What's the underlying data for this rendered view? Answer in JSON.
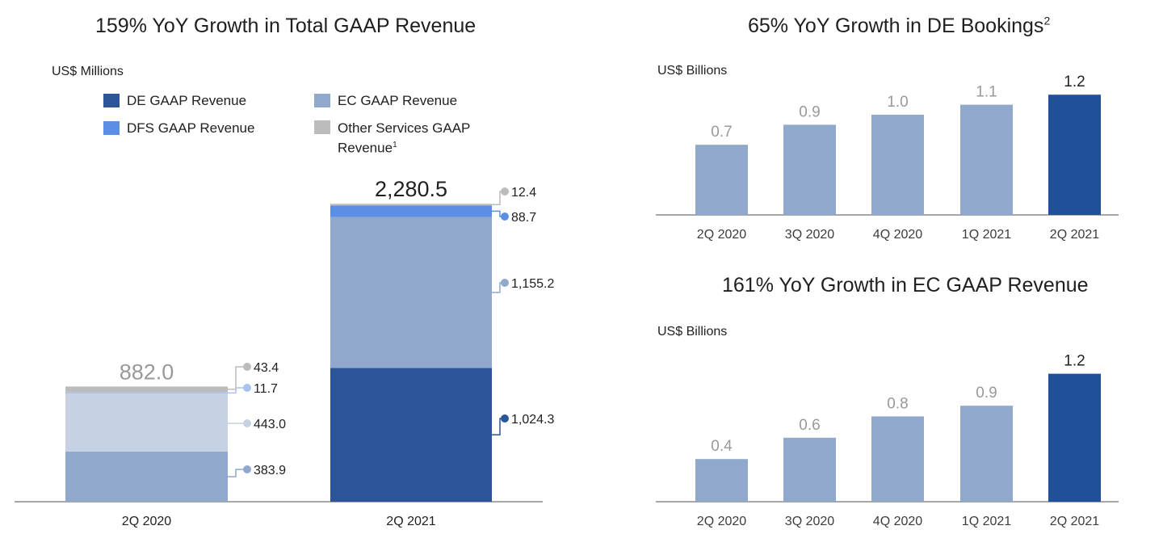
{
  "colors": {
    "de": "#2b5499",
    "ec": "#8fa8cc",
    "ec_light": "#c6d1e3",
    "dfs": "#5b8fe6",
    "dfs_light": "#a9c3f0",
    "other": "#bcbcbc",
    "highlight": "#21509a",
    "axis": "#8a8a8a",
    "muted_label": "#999999",
    "dark_label": "#202124"
  },
  "chart_data": [
    {
      "type": "bar",
      "stacked": true,
      "title": "159% YoY Growth in Total GAAP Revenue",
      "unit_label": "US$ Millions",
      "categories": [
        "2Q 2020",
        "2Q 2021"
      ],
      "legend": [
        {
          "key": "de",
          "label": "DE GAAP Revenue"
        },
        {
          "key": "ec",
          "label": "EC GAAP Revenue"
        },
        {
          "key": "dfs",
          "label": "DFS GAAP Revenue"
        },
        {
          "key": "other",
          "label": "Other Services GAAP Revenue",
          "footnote": "1"
        }
      ],
      "series": [
        {
          "name": "DE GAAP Revenue",
          "key": "de",
          "values": [
            383.9,
            1024.3
          ],
          "labels": [
            "383.9",
            "1,024.3"
          ]
        },
        {
          "name": "EC GAAP Revenue",
          "key": "ec",
          "values": [
            443.0,
            1155.2
          ],
          "labels": [
            "443.0",
            "1,155.2"
          ]
        },
        {
          "name": "DFS GAAP Revenue",
          "key": "dfs",
          "values": [
            11.7,
            88.7
          ],
          "labels": [
            "11.7",
            "88.7"
          ]
        },
        {
          "name": "Other Services GAAP Revenue",
          "key": "other",
          "values": [
            43.4,
            12.4
          ],
          "labels": [
            "43.4",
            "12.4"
          ]
        }
      ],
      "totals": [
        882.0,
        2280.5
      ],
      "total_labels": [
        "882.0",
        "2,280.5"
      ],
      "ylim": [
        0,
        2400
      ],
      "legend_position": "top",
      "grid": false
    },
    {
      "type": "bar",
      "title": "65% YoY Growth in DE Bookings",
      "title_footnote": "2",
      "unit_label": "US$ Billions",
      "categories": [
        "2Q 2020",
        "3Q 2020",
        "4Q 2020",
        "1Q 2021",
        "2Q 2021"
      ],
      "values": [
        0.7,
        0.9,
        1.0,
        1.1,
        1.2
      ],
      "value_labels": [
        "0.7",
        "0.9",
        "1.0",
        "1.1",
        "1.2"
      ],
      "highlight_index": 4,
      "ylim": [
        0,
        1.3
      ],
      "grid": false
    },
    {
      "type": "bar",
      "title": "161% YoY Growth in EC GAAP Revenue",
      "unit_label": "US$ Billions",
      "categories": [
        "2Q 2020",
        "3Q 2020",
        "4Q 2020",
        "1Q 2021",
        "2Q 2021"
      ],
      "values": [
        0.4,
        0.6,
        0.8,
        0.9,
        1.2
      ],
      "value_labels": [
        "0.4",
        "0.6",
        "0.8",
        "0.9",
        "1.2"
      ],
      "highlight_index": 4,
      "ylim": [
        0,
        1.3
      ],
      "grid": false
    }
  ]
}
